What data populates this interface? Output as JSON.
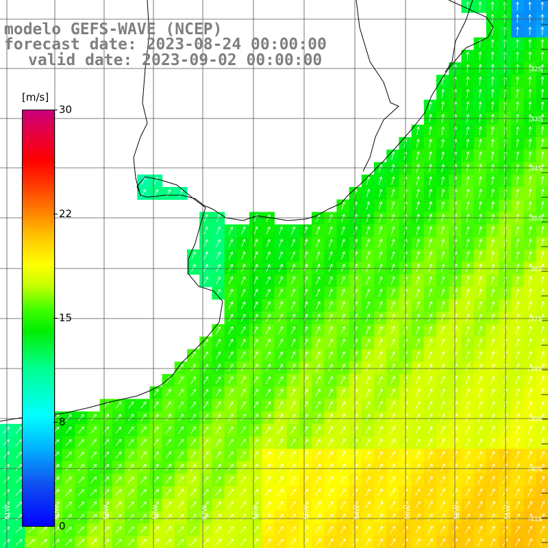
{
  "title": {
    "line1": "modelo GEFS-WAVE (NCEP)",
    "line2": "forecast date: 2023-08-24 00:00:00",
    "line3": "valid date: 2023-09-02 00:00:00"
  },
  "colorbar": {
    "units": "[m/s]",
    "min": 0,
    "max": 30,
    "ticks": [
      "30",
      "22",
      "15",
      "8",
      "0"
    ],
    "tick_values": [
      30,
      22,
      15,
      8,
      0
    ]
  },
  "axes": {
    "lat_labels": [
      "32S",
      "33S",
      "34S",
      "35S",
      "36S",
      "37S",
      "38S",
      "39S",
      "40S",
      "41S"
    ],
    "lon_labels": [
      "61W",
      "60W",
      "59W",
      "58W",
      "57W",
      "56W",
      "55W",
      "54W",
      "53W",
      "52W",
      "51W"
    ]
  },
  "colors": {
    "title_gray": "#7f7f7f",
    "land": "#ffffff",
    "grid": "#505050",
    "arrows": "#ffffff"
  }
}
